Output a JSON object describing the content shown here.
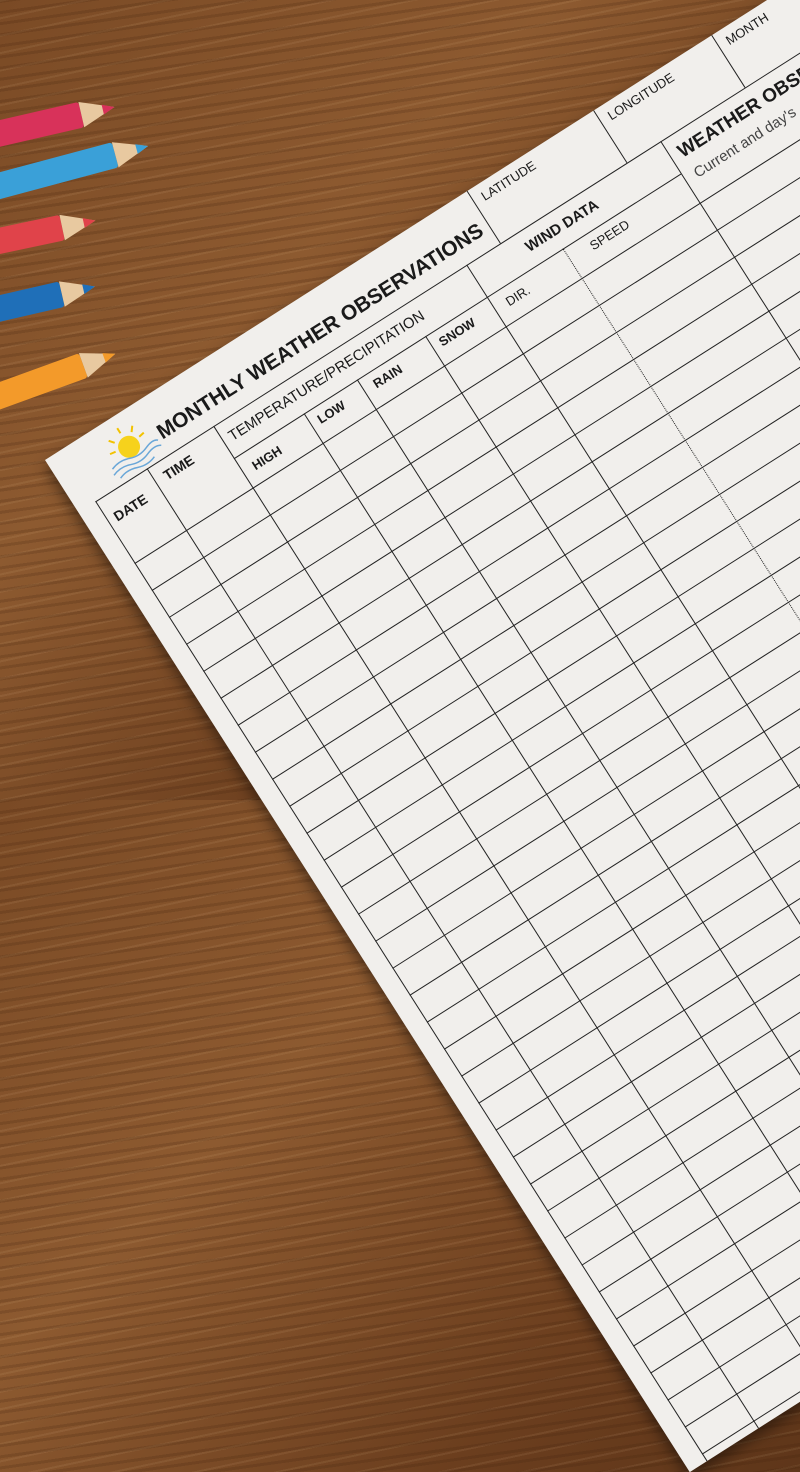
{
  "form": {
    "title": "MONTHLY WEATHER OBSERVATIONS",
    "fields": {
      "latitude": "LATITUDE",
      "longitude": "LONGITUDE",
      "month": "MONTH"
    },
    "columns": {
      "date": "DATE",
      "time": "TIME",
      "temp_group": "TEMPERATURE/PRECIPITATION",
      "high": "HIGH",
      "low": "LOW",
      "rain": "RAIN",
      "snow": "SNOW",
      "wind_group": "WIND DATA",
      "dir": "DIR.",
      "speed": "SPEED",
      "weather_obs": "WEATHER OBSERVATIONS",
      "weather_obs_sub": "Current and day's"
    }
  },
  "pencils": [
    {
      "color": "#d8325a"
    },
    {
      "color": "#3aa0d8"
    },
    {
      "color": "#e0434a"
    },
    {
      "color": "#1f6fb8"
    },
    {
      "color": "#f39a2a"
    }
  ],
  "logo_icon": "sun-over-water-icon"
}
